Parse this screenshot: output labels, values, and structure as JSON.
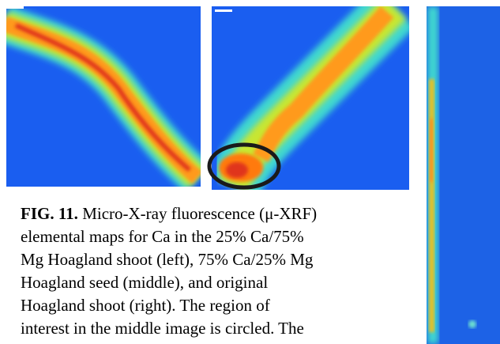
{
  "caption": {
    "label": "FIG. 11.",
    "lines": [
      " Micro-X-ray fluorescence (μ-XRF)",
      "elemental maps for Ca in the 25% Ca/75%",
      "Mg Hoagland shoot (left), 75% Ca/25% Mg",
      "Hoagland seed (middle), and original",
      "Hoagland shoot (right). The region of",
      "interest in the middle image is circled. The"
    ]
  }
}
